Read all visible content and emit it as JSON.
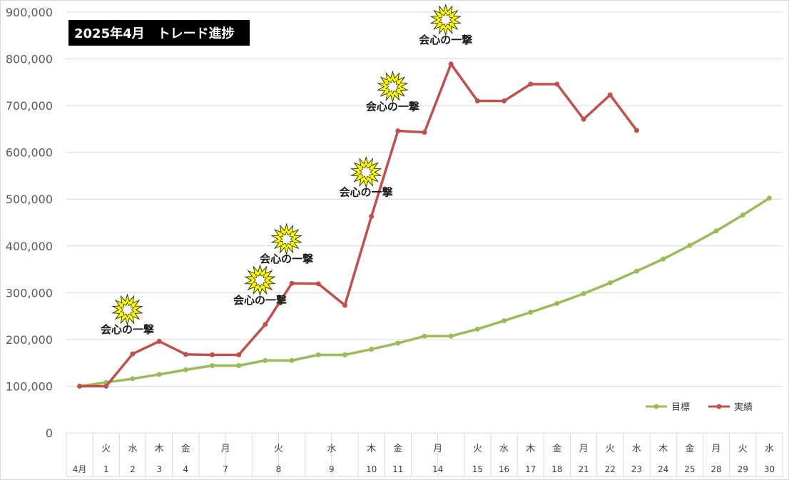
{
  "chart_data": {
    "type": "line",
    "title": "2025年4月　トレード進捗",
    "ylim": [
      0,
      900000
    ],
    "yticks": [
      "0",
      "100,000",
      "200,000",
      "300,000",
      "400,000",
      "500,000",
      "600,000",
      "700,000",
      "800,000",
      "900,000"
    ],
    "categories": [
      {
        "weekday": "",
        "date": "4月"
      },
      {
        "weekday": "火",
        "date": "1"
      },
      {
        "weekday": "水",
        "date": "2"
      },
      {
        "weekday": "木",
        "date": "3"
      },
      {
        "weekday": "金",
        "date": "4"
      },
      {
        "weekday": "月",
        "date": "7"
      },
      {
        "weekday": "",
        "date": ""
      },
      {
        "weekday": "火",
        "date": "8"
      },
      {
        "weekday": "",
        "date": ""
      },
      {
        "weekday": "水",
        "date": "9"
      },
      {
        "weekday": "",
        "date": ""
      },
      {
        "weekday": "木",
        "date": "10"
      },
      {
        "weekday": "金",
        "date": "11"
      },
      {
        "weekday": "月",
        "date": "14"
      },
      {
        "weekday": "",
        "date": ""
      },
      {
        "weekday": "火",
        "date": "15"
      },
      {
        "weekday": "水",
        "date": "16"
      },
      {
        "weekday": "木",
        "date": "17"
      },
      {
        "weekday": "金",
        "date": "18"
      },
      {
        "weekday": "月",
        "date": "21"
      },
      {
        "weekday": "火",
        "date": "22"
      },
      {
        "weekday": "水",
        "date": "23"
      },
      {
        "weekday": "木",
        "date": "24"
      },
      {
        "weekday": "金",
        "date": "25"
      },
      {
        "weekday": "月",
        "date": "28"
      },
      {
        "weekday": "火",
        "date": "29"
      },
      {
        "weekday": "水",
        "date": "30"
      }
    ],
    "series": [
      {
        "name": "目標",
        "color": "#9bbb59",
        "values": [
          100000,
          108000,
          116000,
          125000,
          135000,
          144000,
          144000,
          155000,
          155000,
          167000,
          167000,
          179000,
          192000,
          207000,
          207000,
          222000,
          240000,
          258000,
          277000,
          298000,
          321000,
          346000,
          372000,
          401000,
          432000,
          466000,
          502000
        ]
      },
      {
        "name": "実績",
        "color": "#c0504d",
        "values": [
          100000,
          100000,
          169000,
          196000,
          168000,
          167000,
          167000,
          232000,
          320000,
          319000,
          273000,
          463000,
          646000,
          643000,
          789000,
          710000,
          710000,
          746000,
          746000,
          671000,
          723000,
          647000,
          null,
          null,
          null,
          null,
          null
        ]
      }
    ],
    "annotations": [
      {
        "text": "会心の一撃",
        "x_index": 2,
        "icon": "burst-icon"
      },
      {
        "text": "会心の一撃",
        "x_index": 7,
        "icon": "burst-icon"
      },
      {
        "text": "会心の一撃",
        "x_index": 8,
        "icon": "burst-icon"
      },
      {
        "text": "会心の一撃",
        "x_index": 11,
        "icon": "burst-icon"
      },
      {
        "text": "会心の一撃",
        "x_index": 12,
        "icon": "burst-icon"
      },
      {
        "text": "会心の一撃",
        "x_index": 14,
        "icon": "burst-icon"
      }
    ],
    "legend": {
      "position": "bottom-right"
    },
    "grid": true
  }
}
